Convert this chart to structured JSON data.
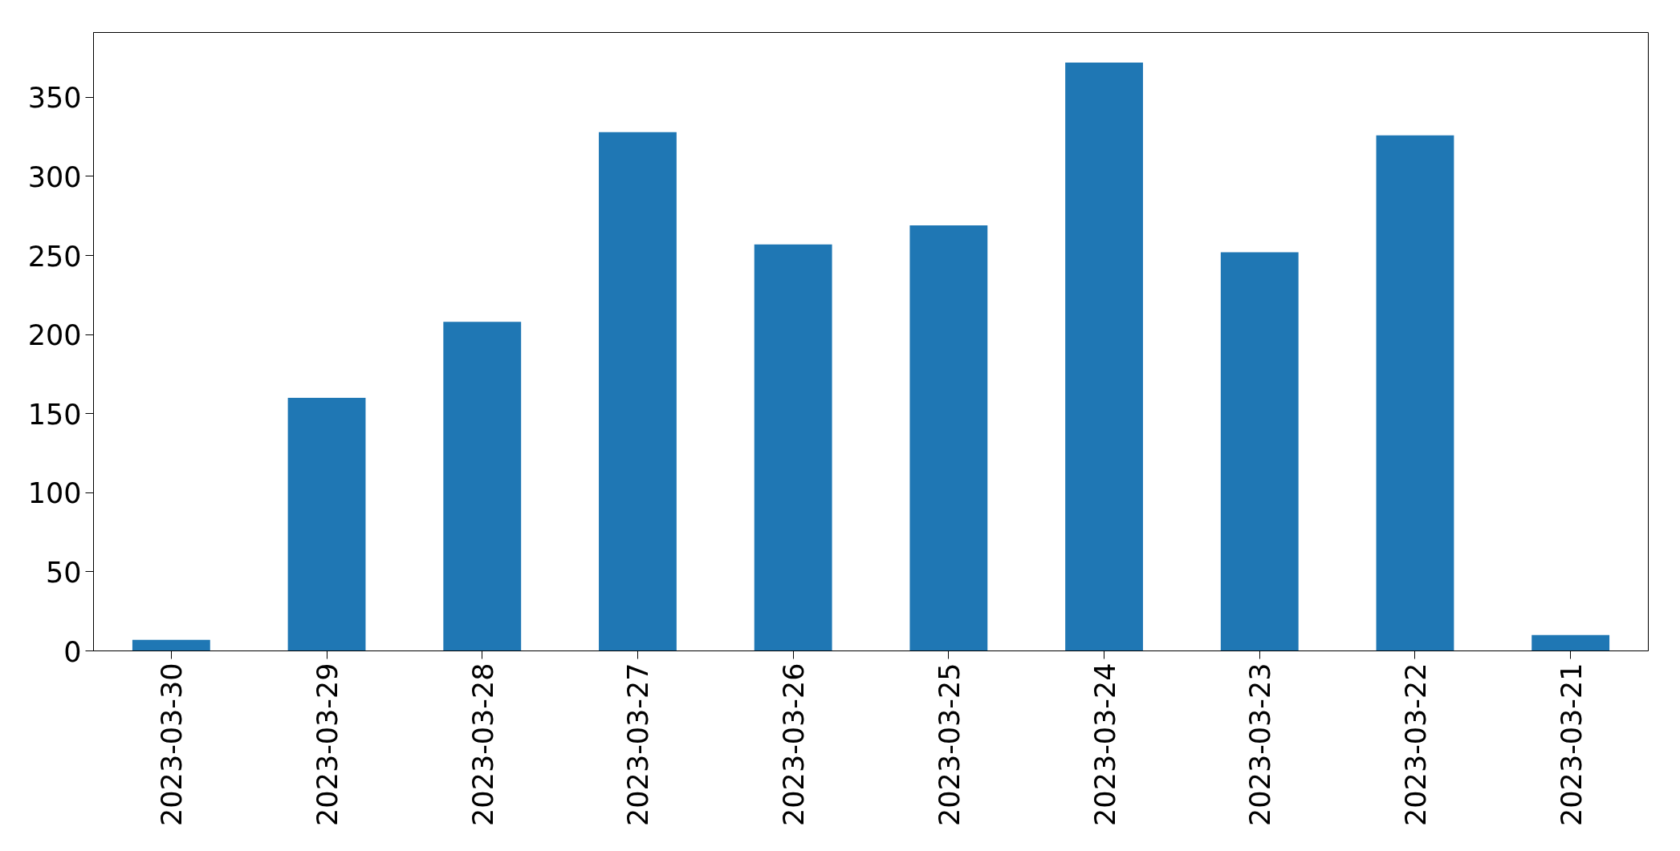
{
  "chart_data": {
    "type": "bar",
    "categories": [
      "2023-03-30",
      "2023-03-29",
      "2023-03-28",
      "2023-03-27",
      "2023-03-26",
      "2023-03-25",
      "2023-03-24",
      "2023-03-23",
      "2023-03-22",
      "2023-03-21"
    ],
    "values": [
      7,
      160,
      208,
      328,
      257,
      269,
      372,
      252,
      326,
      10
    ],
    "color": "#1f77b4",
    "ylim": [
      0,
      391
    ],
    "yticks": [
      0,
      50,
      100,
      150,
      200,
      250,
      300,
      350
    ],
    "grid": false
  }
}
